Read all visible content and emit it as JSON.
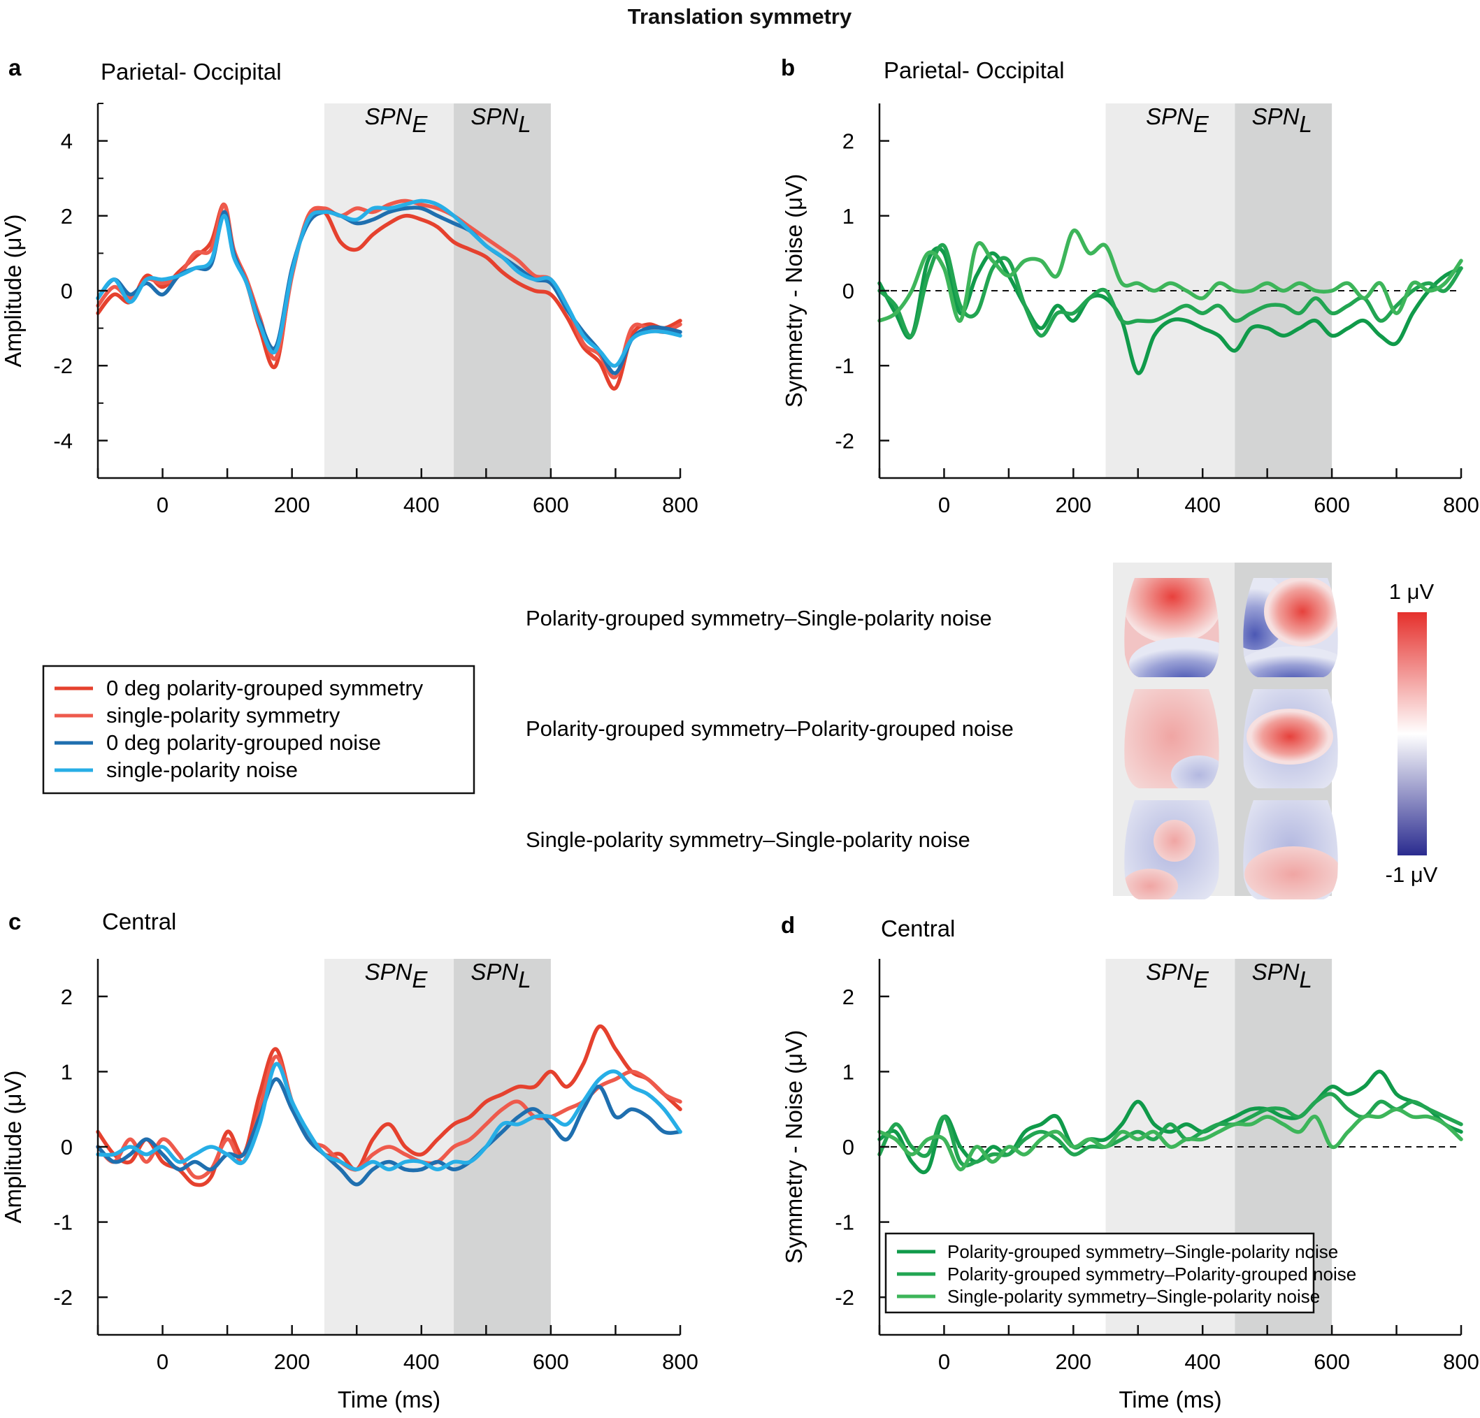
{
  "figure": {
    "title": "Translation symmetry",
    "colors": {
      "red_dark": "#e5412e",
      "red_light": "#ee5a4c",
      "blue_dark": "#1f6faf",
      "blue_light": "#27aee6",
      "green_dark": "#109a4a",
      "green_mid": "#22a552",
      "green_light": "#3db55a",
      "spn_e_shade": "#ececec",
      "spn_l_shade": "#d3d4d4"
    }
  },
  "window_labels": {
    "early": "SPN",
    "early_sub": "E",
    "late": "SPN",
    "late_sub": "L"
  },
  "legend_top": [
    {
      "label": "0 deg polarity-grouped symmetry",
      "color": "#e5412e"
    },
    {
      "label": "single-polarity symmetry",
      "color": "#ee5a4c"
    },
    {
      "label": "0 deg polarity-grouped noise",
      "color": "#1f6faf"
    },
    {
      "label": "single-polarity noise",
      "color": "#27aee6"
    }
  ],
  "legend_bottom": [
    {
      "label": "Polarity-grouped symmetry–Single-polarity noise",
      "color": "#109a4a"
    },
    {
      "label": "Polarity-grouped symmetry–Polarity-grouped noise",
      "color": "#22a552"
    },
    {
      "label": "Single-polarity symmetry–Single-polarity noise",
      "color": "#3db55a"
    }
  ],
  "topomaps": {
    "row_labels": [
      "Polarity-grouped symmetry–Single-polarity noise",
      "Polarity-grouped symmetry–Polarity-grouped noise",
      "Single-polarity symmetry–Single-polarity noise"
    ],
    "colorbar_max": "1 μV",
    "colorbar_min": "-1 μV"
  },
  "chart_data": [
    {
      "panel": "a",
      "type": "line",
      "subtitle": "Parietal- Occipital",
      "xlabel": "",
      "ylabel": "Amplitude (μV)",
      "xlim": [
        -100,
        800
      ],
      "ylim": [
        -5,
        5
      ],
      "xticks": [
        "0",
        "200",
        "400",
        "600",
        "800"
      ],
      "yticks": [
        "-4",
        "-2",
        "0",
        "2",
        "4"
      ],
      "shaded_windows": [
        [
          250,
          450
        ],
        [
          450,
          600
        ]
      ],
      "x": [
        -100,
        -75,
        -50,
        -25,
        0,
        25,
        50,
        75,
        95,
        110,
        130,
        150,
        175,
        200,
        225,
        250,
        275,
        300,
        325,
        350,
        375,
        400,
        425,
        450,
        475,
        500,
        525,
        550,
        575,
        600,
        625,
        650,
        675,
        700,
        725,
        750,
        775,
        800
      ],
      "series": [
        {
          "name": "0 deg polarity-grouped symmetry",
          "color": "#e5412e",
          "values": [
            -0.6,
            -0.1,
            -0.3,
            0.4,
            0.1,
            0.5,
            0.9,
            1.3,
            2.3,
            1.0,
            0.2,
            -1.0,
            -2.0,
            0.5,
            1.9,
            2.1,
            1.3,
            1.1,
            1.5,
            1.8,
            2.0,
            1.9,
            1.7,
            1.3,
            1.1,
            0.9,
            0.5,
            0.2,
            0,
            -0.1,
            -0.7,
            -1.5,
            -1.9,
            -2.6,
            -1.2,
            -0.9,
            -1.0,
            -0.8
          ]
        },
        {
          "name": "single-polarity symmetry",
          "color": "#ee5a4c",
          "values": [
            -0.4,
            0.1,
            -0.2,
            0.3,
            0.2,
            0.4,
            1.0,
            1.1,
            2.3,
            1.1,
            0.3,
            -0.7,
            -1.8,
            0.4,
            2.0,
            2.2,
            2.0,
            2.2,
            2.1,
            2.3,
            2.4,
            2.3,
            2.2,
            2.0,
            1.7,
            1.4,
            1.1,
            0.8,
            0.4,
            0.3,
            -0.4,
            -1.4,
            -1.7,
            -2.3,
            -1.0,
            -1.0,
            -1.1,
            -0.9
          ]
        },
        {
          "name": "0 deg polarity-grouped noise",
          "color": "#1f6faf",
          "values": [
            -0.2,
            0.3,
            -0.1,
            0.2,
            -0.1,
            0.4,
            0.6,
            0.7,
            2.1,
            1.0,
            0.2,
            -0.8,
            -1.5,
            0.6,
            1.8,
            2.1,
            2.0,
            1.8,
            1.9,
            2.1,
            2.2,
            2.2,
            2.0,
            1.8,
            1.6,
            1.2,
            0.9,
            0.6,
            0.3,
            0.2,
            -0.5,
            -1.1,
            -1.6,
            -2.2,
            -1.3,
            -1.0,
            -1.0,
            -1.1
          ]
        },
        {
          "name": "single-polarity noise",
          "color": "#27aee6",
          "values": [
            -0.2,
            0.3,
            -0.3,
            0.3,
            0.3,
            0.4,
            0.6,
            0.8,
            2.0,
            0.9,
            0.2,
            -0.9,
            -1.6,
            0.5,
            1.9,
            2.1,
            2.0,
            1.9,
            2.2,
            2.2,
            2.3,
            2.4,
            2.3,
            2.0,
            1.6,
            1.2,
            0.9,
            0.5,
            0.3,
            0.3,
            -0.4,
            -1.2,
            -1.6,
            -2.0,
            -1.3,
            -1.1,
            -1.1,
            -1.2
          ]
        }
      ]
    },
    {
      "panel": "b",
      "type": "line",
      "subtitle": "Parietal- Occipital",
      "xlabel": "",
      "ylabel": "Symmetry - Noise (μV)",
      "xlim": [
        -100,
        800
      ],
      "ylim": [
        -2.5,
        2.5
      ],
      "xticks": [
        "0",
        "200",
        "400",
        "600",
        "800"
      ],
      "yticks": [
        "-2",
        "-1",
        "0",
        "1",
        "2"
      ],
      "shaded_windows": [
        [
          250,
          450
        ],
        [
          450,
          600
        ]
      ],
      "zero_line": true,
      "x": [
        -100,
        -75,
        -50,
        -25,
        0,
        25,
        50,
        75,
        100,
        125,
        150,
        175,
        200,
        225,
        250,
        275,
        300,
        325,
        350,
        375,
        400,
        425,
        450,
        475,
        500,
        525,
        550,
        575,
        600,
        625,
        650,
        675,
        700,
        725,
        750,
        775,
        800
      ],
      "series": [
        {
          "name": "Polarity-grouped symmetry–Single-polarity noise",
          "color": "#109a4a",
          "values": [
            0.1,
            -0.3,
            -0.6,
            0.4,
            0.5,
            -0.3,
            0.2,
            0.5,
            0.2,
            -0.2,
            -0.5,
            -0.2,
            -0.4,
            -0.1,
            -0.1,
            -0.4,
            -1.1,
            -0.6,
            -0.4,
            -0.4,
            -0.5,
            -0.6,
            -0.8,
            -0.5,
            -0.5,
            -0.6,
            -0.5,
            -0.4,
            -0.6,
            -0.5,
            -0.4,
            -0.6,
            -0.7,
            -0.3,
            0,
            0.2,
            0.3
          ]
        },
        {
          "name": "Polarity-grouped symmetry–Polarity-grouped noise",
          "color": "#22a552",
          "values": [
            0,
            -0.2,
            -0.6,
            0.2,
            0.6,
            -0.2,
            -0.3,
            0.3,
            0.4,
            -0.2,
            -0.6,
            -0.3,
            -0.3,
            -0.1,
            0,
            -0.4,
            -0.4,
            -0.4,
            -0.3,
            -0.2,
            -0.3,
            -0.2,
            -0.4,
            -0.3,
            -0.2,
            -0.2,
            -0.3,
            -0.1,
            -0.3,
            -0.2,
            -0.1,
            -0.4,
            -0.2,
            0,
            0.1,
            0,
            0.3
          ]
        },
        {
          "name": "Single-polarity symmetry–Single-polarity noise",
          "color": "#3db55a",
          "values": [
            -0.4,
            -0.3,
            0,
            0.5,
            0.3,
            -0.4,
            0.6,
            0.4,
            0.2,
            0.4,
            0.4,
            0.2,
            0.8,
            0.5,
            0.6,
            0.1,
            0.1,
            0,
            0.1,
            0,
            -0.1,
            0.1,
            0,
            0,
            0.1,
            0,
            0.1,
            0,
            0,
            0.1,
            -0.1,
            0.1,
            -0.3,
            0.1,
            0,
            0.1,
            0.4
          ]
        }
      ]
    },
    {
      "panel": "c",
      "type": "line",
      "subtitle": "Central",
      "xlabel": "Time (ms)",
      "ylabel": "Amplitude (μV)",
      "xlim": [
        -100,
        800
      ],
      "ylim": [
        -2.5,
        2.5
      ],
      "xticks": [
        "0",
        "200",
        "400",
        "600",
        "800"
      ],
      "yticks": [
        "-2",
        "-1",
        "0",
        "1",
        "2"
      ],
      "shaded_windows": [
        [
          250,
          450
        ],
        [
          450,
          600
        ]
      ],
      "x": [
        -100,
        -75,
        -50,
        -25,
        0,
        25,
        50,
        75,
        100,
        125,
        150,
        175,
        200,
        225,
        250,
        275,
        300,
        325,
        350,
        375,
        400,
        425,
        450,
        475,
        500,
        525,
        550,
        575,
        600,
        625,
        650,
        675,
        700,
        725,
        750,
        775,
        800
      ],
      "series": [
        {
          "name": "0 deg polarity-grouped symmetry",
          "color": "#e5412e",
          "values": [
            0.2,
            -0.1,
            -0.2,
            0.1,
            -0.2,
            -0.3,
            -0.5,
            -0.4,
            0.2,
            -0.1,
            0.7,
            1.3,
            0.6,
            0.2,
            -0.1,
            -0.1,
            -0.3,
            0.1,
            0.3,
            0,
            -0.1,
            0.1,
            0.3,
            0.4,
            0.6,
            0.7,
            0.8,
            0.8,
            1.0,
            0.8,
            1.1,
            1.6,
            1.3,
            1.0,
            0.9,
            0.7,
            0.5
          ]
        },
        {
          "name": "single-polarity symmetry",
          "color": "#ee5a4c",
          "values": [
            0,
            -0.2,
            0.1,
            -0.2,
            0.1,
            -0.1,
            -0.4,
            -0.3,
            0.1,
            -0.2,
            0.5,
            1.2,
            0.6,
            0.1,
            0,
            -0.2,
            -0.3,
            -0.1,
            0,
            -0.1,
            -0.2,
            -0.2,
            0,
            0.1,
            0.3,
            0.5,
            0.6,
            0.4,
            0.4,
            0.5,
            0.6,
            0.8,
            0.9,
            1.0,
            0.9,
            0.7,
            0.6
          ]
        },
        {
          "name": "0 deg polarity-grouped noise",
          "color": "#1f6faf",
          "values": [
            0,
            -0.2,
            -0.1,
            0.1,
            -0.1,
            -0.3,
            -0.2,
            -0.3,
            -0.1,
            -0.1,
            0.4,
            0.9,
            0.5,
            0.1,
            -0.1,
            -0.3,
            -0.5,
            -0.3,
            -0.2,
            -0.3,
            -0.3,
            -0.2,
            -0.3,
            -0.2,
            0,
            0.2,
            0.4,
            0.5,
            0.3,
            0.1,
            0.5,
            0.8,
            0.4,
            0.5,
            0.4,
            0.2,
            0.2
          ]
        },
        {
          "name": "single-polarity noise",
          "color": "#27aee6",
          "values": [
            -0.1,
            -0.1,
            0,
            -0.1,
            0,
            -0.2,
            -0.1,
            0,
            -0.1,
            -0.2,
            0.3,
            1.1,
            0.6,
            0.2,
            -0.1,
            -0.2,
            -0.3,
            -0.2,
            -0.3,
            -0.2,
            -0.2,
            -0.3,
            -0.2,
            -0.2,
            0,
            0.3,
            0.3,
            0.4,
            0.4,
            0.3,
            0.6,
            0.9,
            1.0,
            0.8,
            0.7,
            0.5,
            0.2
          ]
        }
      ]
    },
    {
      "panel": "d",
      "type": "line",
      "subtitle": "Central",
      "xlabel": "Time (ms)",
      "ylabel": "Symmetry - Noise (μV)",
      "xlim": [
        -100,
        800
      ],
      "ylim": [
        -2.5,
        2.5
      ],
      "xticks": [
        "0",
        "200",
        "400",
        "600",
        "800"
      ],
      "yticks": [
        "-2",
        "-1",
        "0",
        "1",
        "2"
      ],
      "shaded_windows": [
        [
          250,
          450
        ],
        [
          450,
          600
        ]
      ],
      "zero_line": true,
      "x": [
        -100,
        -75,
        -50,
        -25,
        0,
        25,
        50,
        75,
        100,
        125,
        150,
        175,
        200,
        225,
        250,
        275,
        300,
        325,
        350,
        375,
        400,
        425,
        450,
        475,
        500,
        525,
        550,
        575,
        600,
        625,
        650,
        675,
        700,
        725,
        750,
        775,
        800
      ],
      "series": [
        {
          "name": "Polarity-grouped symmetry–Single-polarity noise",
          "color": "#109a4a",
          "values": [
            0.1,
            0.2,
            -0.2,
            -0.3,
            0.4,
            0,
            -0.2,
            0,
            -0.1,
            0.2,
            0.3,
            0.4,
            0,
            0.1,
            0.1,
            0.3,
            0.6,
            0.3,
            0.2,
            0.3,
            0.2,
            0.3,
            0.4,
            0.5,
            0.5,
            0.4,
            0.4,
            0.6,
            0.8,
            0.7,
            0.8,
            1.0,
            0.7,
            0.6,
            0.5,
            0.3,
            0.2
          ]
        },
        {
          "name": "Polarity-grouped symmetry–Polarity-grouped noise",
          "color": "#22a552",
          "values": [
            -0.1,
            0.3,
            0,
            -0.1,
            0.4,
            -0.2,
            -0.2,
            -0.1,
            -0.1,
            0.1,
            0.2,
            0.1,
            -0.1,
            0,
            0,
            0.1,
            0.2,
            0.1,
            0.3,
            0.1,
            0.2,
            0.3,
            0.3,
            0.4,
            0.5,
            0.5,
            0.4,
            0.6,
            0.7,
            0.5,
            0.4,
            0.6,
            0.5,
            0.6,
            0.5,
            0.4,
            0.3
          ]
        },
        {
          "name": "Single-polarity symmetry–Single-polarity noise",
          "color": "#3db55a",
          "values": [
            0.2,
            0.1,
            -0.1,
            0.1,
            0.1,
            -0.3,
            0,
            -0.2,
            0,
            -0.1,
            0.1,
            0.2,
            0,
            0.1,
            0,
            0.2,
            0.1,
            0.2,
            0,
            0.1,
            0.1,
            0.2,
            0.3,
            0.3,
            0.4,
            0.3,
            0.2,
            0.4,
            0,
            0.2,
            0.4,
            0.4,
            0.5,
            0.4,
            0.4,
            0.3,
            0.1
          ]
        }
      ]
    }
  ]
}
